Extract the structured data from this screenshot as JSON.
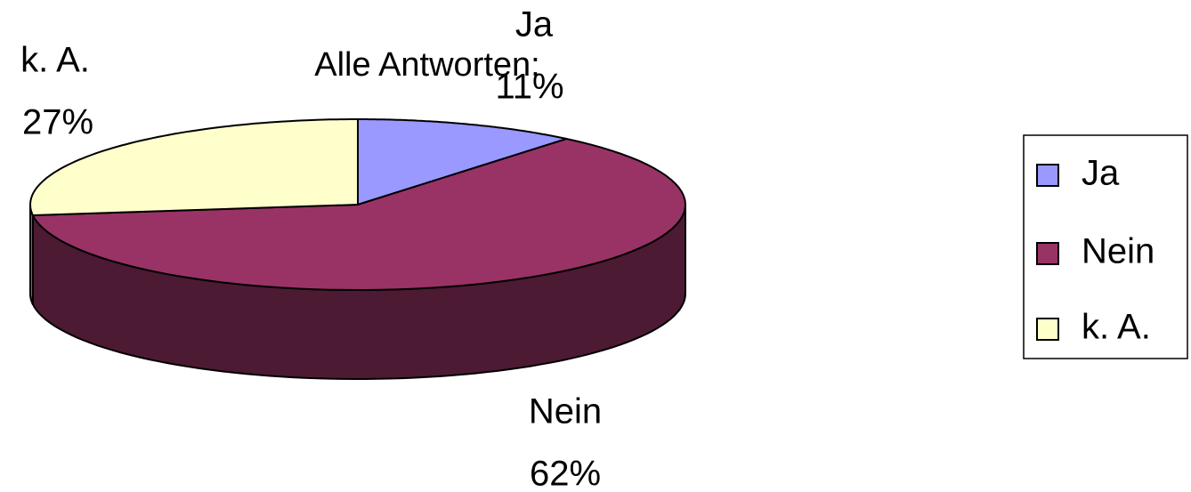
{
  "chart_data": {
    "type": "pie",
    "title": "Alle Antworten:",
    "categories": [
      "Ja",
      "Nein",
      "k. A."
    ],
    "values": [
      11,
      62,
      27
    ],
    "value_labels": [
      "11%",
      "62%",
      "27%"
    ],
    "colors": [
      "#9999ff",
      "#993366",
      "#ffffcc"
    ],
    "legend": "right"
  }
}
